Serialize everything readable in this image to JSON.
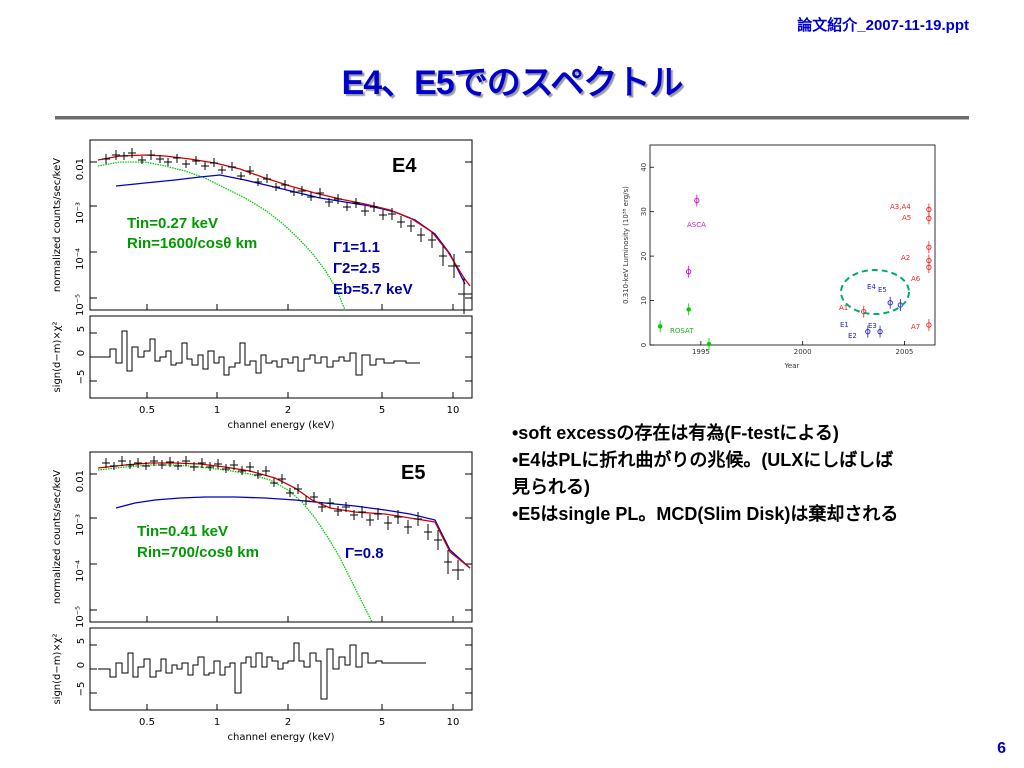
{
  "file_label": "論文紹介_2007-11-19.ppt",
  "title": "E4、E5でのスペクトル",
  "page_number": "6",
  "bullets": [
    "•soft excessの存在は有為(F-testによる)",
    "•E4はPLに折れ曲がりの兆候。(ULXにしばしば",
    "見られる)",
    "•E5はsingle PL。MCD(Slim Disk)は棄却される"
  ],
  "colors": {
    "title": "#0000cc",
    "data": "#000000",
    "model": "#d00000",
    "disk": "#00cc00",
    "powerlaw": "#0000cc",
    "disk_label": "#009900",
    "pl_label": "#0000aa"
  },
  "spectra": {
    "ylabel": "normalized counts/sec/keV",
    "resid_ylabel": "sign(d−m)×χ²",
    "xlabel": "channel energy (keV)",
    "x_ticks": [
      "0.5",
      "1",
      "2",
      "5",
      "10"
    ],
    "y_ticks": [
      "10⁻⁵",
      "10⁻⁴",
      "10⁻³",
      "0.01"
    ],
    "resid_ticks": [
      "5",
      "0",
      "−5"
    ],
    "e4": {
      "label": "E4",
      "disk_text": [
        "Tin=0.27 keV",
        "Rin=1600/cosθ km"
      ],
      "pl_text": [
        "Γ1=1.1",
        "Γ2=2.5",
        "Eb=5.7 keV"
      ]
    },
    "e5": {
      "label": "E5",
      "disk_text": [
        "Tin=0.41 keV",
        "Rin=700/cosθ km"
      ],
      "pl_text": [
        "Γ=0.8"
      ]
    }
  },
  "chart_data": [
    {
      "type": "scatter",
      "title": "",
      "ylabel": "0.310-keV Luminosity (10³⁸ erg/s)",
      "xlabel": "Year",
      "xlim": [
        1992.5,
        2006.5
      ],
      "ylim": [
        0,
        45
      ],
      "x_ticks": [
        "1995",
        "2000",
        "2005"
      ],
      "y_ticks": [
        "0",
        "10",
        "20",
        "30",
        "40"
      ],
      "series": [
        {
          "name": "ROSAT",
          "color": "#00cc00",
          "points": [
            [
              1993.0,
              4.2
            ],
            [
              1994.4,
              8.0
            ],
            [
              1995.4,
              0.2
            ]
          ]
        },
        {
          "name": "ASCA",
          "color": "#cc00cc",
          "points": [
            [
              1994.4,
              16.5
            ],
            [
              1994.8,
              32.5
            ]
          ]
        },
        {
          "name": "",
          "color": "#2222cc",
          "points": [
            [
              2003.2,
              3.0
            ],
            [
              2003.8,
              3.0
            ],
            [
              2004.3,
              9.5
            ],
            [
              2004.8,
              9.0
            ]
          ]
        },
        {
          "name": "",
          "color": "#ee2222",
          "points": [
            [
              2003.0,
              7.5
            ],
            [
              2006.2,
              17.5
            ],
            [
              2006.2,
              19.0
            ],
            [
              2006.2,
              22.0
            ],
            [
              2006.2,
              28.5
            ],
            [
              2006.2,
              30.5
            ],
            [
              2006.2,
              4.5
            ]
          ]
        }
      ],
      "point_labels": [
        "E1",
        "E2",
        "E3",
        "E4",
        "E5",
        "A1",
        "A2",
        "A3,A4",
        "A5",
        "A6",
        "A7"
      ],
      "series_labels": [
        "ROSAT",
        "ASCA"
      ]
    }
  ]
}
